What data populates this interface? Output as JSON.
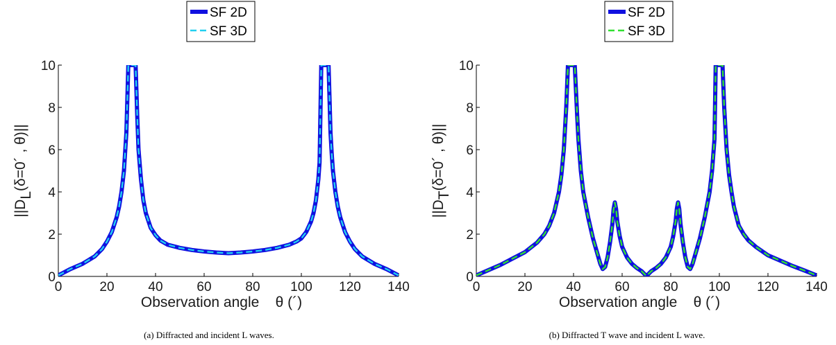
{
  "chart_data": [
    {
      "type": "line",
      "caption": "(a) Diffracted and incident L waves.",
      "xlabel": "Observation angle    θ (´)",
      "ylabel": "||D_L(δ=0´ , θ)||",
      "ylabel_parts": {
        "pre": "||D",
        "sub": "L",
        "post": "(δ=0´ , θ)||"
      },
      "xlim": [
        0,
        140
      ],
      "ylim": [
        0,
        10
      ],
      "xticks": [
        0,
        20,
        40,
        60,
        80,
        100,
        120,
        140
      ],
      "yticks": [
        0,
        2,
        4,
        6,
        8,
        10
      ],
      "grid": false,
      "legend_position": "top-center",
      "series": [
        {
          "name": "SF 2D",
          "color": "#1010e0",
          "style": "solid",
          "x": [
            0,
            5,
            10,
            15,
            18,
            20,
            22,
            24,
            25,
            26,
            27,
            28,
            28.8,
            31.8,
            32.5,
            33,
            34,
            35,
            36,
            38,
            40,
            42,
            45,
            50,
            55,
            60,
            65,
            70,
            75,
            80,
            85,
            90,
            95,
            98,
            100,
            102,
            104,
            105,
            106,
            107,
            107.5,
            108.2,
            111.2,
            112,
            112.5,
            113,
            114,
            115,
            116,
            118,
            120,
            122,
            125,
            130,
            135,
            140
          ],
          "y": [
            0.05,
            0.35,
            0.6,
            0.95,
            1.3,
            1.65,
            2.1,
            2.8,
            3.3,
            4.0,
            5.0,
            6.8,
            10,
            10,
            7.5,
            6.0,
            4.6,
            3.6,
            3.0,
            2.3,
            1.95,
            1.7,
            1.5,
            1.35,
            1.25,
            1.18,
            1.13,
            1.1,
            1.13,
            1.18,
            1.25,
            1.35,
            1.5,
            1.65,
            1.8,
            2.1,
            2.6,
            3.0,
            3.6,
            4.6,
            5.4,
            10,
            10,
            6.8,
            5.8,
            5.0,
            4.0,
            3.3,
            2.8,
            2.1,
            1.65,
            1.3,
            0.95,
            0.6,
            0.35,
            0.05
          ]
        },
        {
          "name": "SF 3D",
          "color": "#22d0f0",
          "style": "dashed",
          "x": [
            0,
            5,
            10,
            15,
            18,
            20,
            22,
            24,
            25,
            26,
            27,
            28,
            28.8,
            31.8,
            32.5,
            33,
            34,
            35,
            36,
            38,
            40,
            42,
            45,
            50,
            55,
            60,
            65,
            70,
            75,
            80,
            85,
            90,
            95,
            98,
            100,
            102,
            104,
            105,
            106,
            107,
            107.5,
            108.2,
            111.2,
            112,
            112.5,
            113,
            114,
            115,
            116,
            118,
            120,
            122,
            125,
            130,
            135,
            140
          ],
          "y": [
            0.05,
            0.35,
            0.6,
            0.95,
            1.3,
            1.65,
            2.1,
            2.8,
            3.3,
            4.0,
            5.0,
            6.8,
            10,
            10,
            7.5,
            6.0,
            4.6,
            3.6,
            3.0,
            2.3,
            1.95,
            1.7,
            1.5,
            1.35,
            1.25,
            1.18,
            1.13,
            1.1,
            1.13,
            1.18,
            1.25,
            1.35,
            1.5,
            1.65,
            1.8,
            2.1,
            2.6,
            3.0,
            3.6,
            4.6,
            5.4,
            10,
            10,
            6.8,
            5.8,
            5.0,
            4.0,
            3.3,
            2.8,
            2.1,
            1.65,
            1.3,
            0.95,
            0.6,
            0.35,
            0.05
          ]
        }
      ]
    },
    {
      "type": "line",
      "caption": "(b) Diffracted T wave and incident L wave.",
      "xlabel": "Observation angle    θ (´)",
      "ylabel": "||D_T(δ=0´ , θ)||",
      "ylabel_parts": {
        "pre": "||D",
        "sub": "T",
        "post": "(δ=0´ , θ)||"
      },
      "xlim": [
        0,
        140
      ],
      "ylim": [
        0,
        10
      ],
      "xticks": [
        0,
        20,
        40,
        60,
        80,
        100,
        120,
        140
      ],
      "yticks": [
        0,
        2,
        4,
        6,
        8,
        10
      ],
      "grid": false,
      "legend_position": "top-center",
      "series": [
        {
          "name": "SF 2D",
          "color": "#1010e0",
          "style": "solid",
          "x": [
            0,
            5,
            10,
            15,
            20,
            25,
            28,
            30,
            32,
            34,
            35,
            36,
            37,
            37.7,
            40.5,
            41.5,
            42,
            43,
            44,
            46,
            48,
            50,
            51,
            52,
            53,
            54,
            55,
            56,
            56.5,
            57,
            57.5,
            58,
            59,
            60,
            62,
            64,
            66,
            68,
            70,
            72,
            74,
            76,
            78,
            80,
            81,
            82,
            82.5,
            83,
            83.5,
            84,
            85,
            86,
            87,
            88,
            89,
            90,
            92,
            94,
            96,
            97,
            98,
            98.5,
            101.3,
            102,
            103,
            104,
            105,
            106,
            108,
            110,
            112,
            115,
            120,
            125,
            130,
            135,
            140
          ],
          "y": [
            0.05,
            0.3,
            0.55,
            0.85,
            1.15,
            1.6,
            2.0,
            2.4,
            3.0,
            4.0,
            4.8,
            6.0,
            8.0,
            10,
            10,
            7.6,
            6.5,
            5.0,
            4.0,
            2.8,
            1.8,
            1.0,
            0.6,
            0.35,
            0.45,
            0.9,
            1.6,
            2.5,
            3.2,
            3.5,
            3.2,
            2.6,
            1.9,
            1.4,
            0.9,
            0.6,
            0.4,
            0.25,
            0.02,
            0.25,
            0.4,
            0.6,
            0.9,
            1.4,
            1.9,
            2.6,
            3.2,
            3.5,
            3.2,
            2.5,
            1.6,
            0.9,
            0.45,
            0.35,
            0.6,
            1.0,
            1.8,
            2.8,
            4.0,
            5.0,
            6.5,
            10,
            10,
            8.0,
            6.0,
            4.8,
            4.0,
            3.3,
            2.4,
            2.0,
            1.7,
            1.4,
            1.0,
            0.75,
            0.5,
            0.28,
            0.05
          ]
        },
        {
          "name": "SF 3D",
          "color": "#30e030",
          "style": "dashed",
          "x": [
            0,
            5,
            10,
            15,
            20,
            25,
            28,
            30,
            32,
            34,
            35,
            36,
            37,
            37.7,
            40.5,
            41.5,
            42,
            43,
            44,
            46,
            48,
            50,
            51,
            52,
            53,
            54,
            55,
            56,
            56.5,
            57,
            57.5,
            58,
            59,
            60,
            62,
            64,
            66,
            68,
            70,
            72,
            74,
            76,
            78,
            80,
            81,
            82,
            82.5,
            83,
            83.5,
            84,
            85,
            86,
            87,
            88,
            89,
            90,
            92,
            94,
            96,
            97,
            98,
            98.5,
            101.3,
            102,
            103,
            104,
            105,
            106,
            108,
            110,
            112,
            115,
            120,
            125,
            130,
            135,
            140
          ],
          "y": [
            0.05,
            0.3,
            0.55,
            0.85,
            1.15,
            1.6,
            2.0,
            2.4,
            3.0,
            4.0,
            4.8,
            6.0,
            8.0,
            10,
            10,
            7.6,
            6.5,
            5.0,
            4.0,
            2.8,
            1.8,
            1.0,
            0.6,
            0.35,
            0.45,
            0.9,
            1.6,
            2.5,
            3.2,
            3.5,
            3.2,
            2.6,
            1.9,
            1.4,
            0.9,
            0.6,
            0.4,
            0.25,
            0.02,
            0.25,
            0.4,
            0.6,
            0.9,
            1.4,
            1.9,
            2.6,
            3.2,
            3.5,
            3.2,
            2.5,
            1.6,
            0.9,
            0.45,
            0.35,
            0.6,
            1.0,
            1.8,
            2.8,
            4.0,
            5.0,
            6.5,
            10,
            10,
            8.0,
            6.0,
            4.8,
            4.0,
            3.3,
            2.4,
            2.0,
            1.7,
            1.4,
            1.0,
            0.75,
            0.5,
            0.28,
            0.05
          ]
        }
      ]
    }
  ]
}
